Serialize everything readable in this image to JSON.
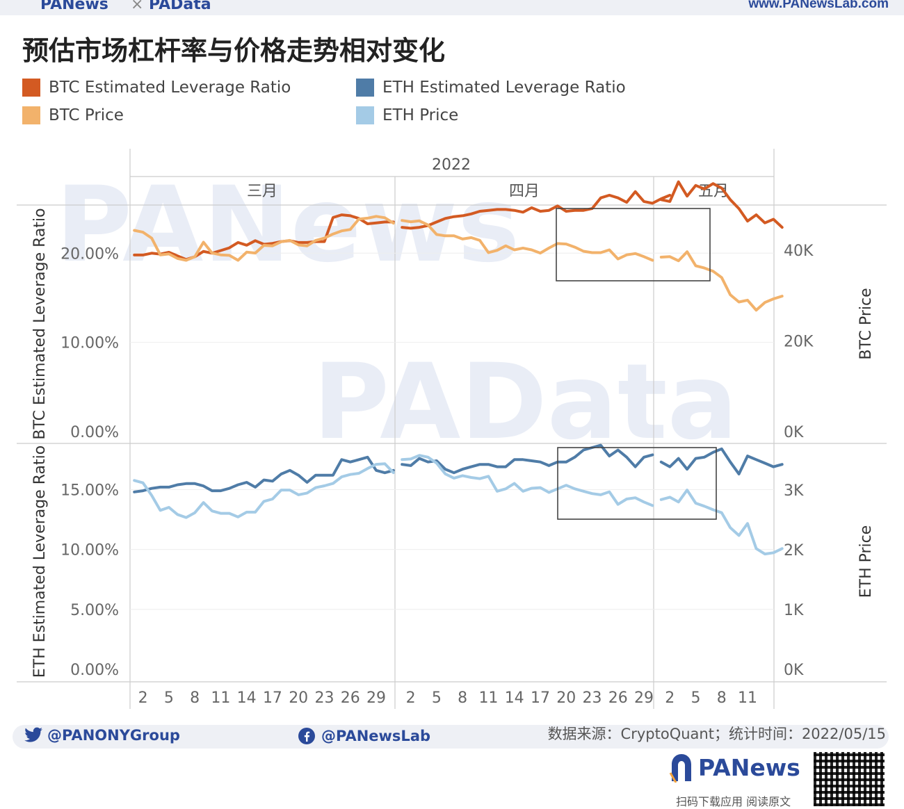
{
  "header": {
    "brand_left": "PANews",
    "brand_sep": "×",
    "brand_right": "PAData",
    "site": "www.PANewsLab.com"
  },
  "title": "预估市场杠杆率与价格走势相对变化",
  "legend": [
    {
      "label": "BTC Estimated Leverage Ratio",
      "color": "#d35a22"
    },
    {
      "label": "ETH Estimated Leverage Ratio",
      "color": "#4f7ca7"
    },
    {
      "label": "BTC Price",
      "color": "#f2b26b"
    },
    {
      "label": "ETH Price",
      "color": "#a4cbe6"
    }
  ],
  "chart_data": {
    "type": "line",
    "year": "2022",
    "months": [
      "三月",
      "四月",
      "五月"
    ],
    "x_tick_labels": [
      "2",
      "5",
      "8",
      "11",
      "14",
      "17",
      "20",
      "23",
      "26",
      "29",
      "2",
      "5",
      "8",
      "11",
      "14",
      "17",
      "20",
      "23",
      "26",
      "29",
      "2",
      "5",
      "8",
      "11"
    ],
    "btc_panel": {
      "ylabel_left": "BTC Estimated Leverage Ratio",
      "ylabel_right": "BTC Price",
      "left_ticks": [
        "0.00%",
        "10.00%",
        "20.00%"
      ],
      "right_ticks": [
        "0K",
        "20K",
        "40K"
      ],
      "ylim_left": [
        0,
        25.4
      ],
      "ylim_right": [
        0,
        50000
      ],
      "series": [
        {
          "name": "BTC Estimated Leverage Ratio",
          "axis": "left",
          "color": "#d35a22",
          "segments": [
            {
              "start_day": 1,
              "values": [
                19.8,
                19.8,
                20.0,
                19.9,
                20.1,
                19.7,
                19.3,
                19.6,
                20.2,
                20.0,
                20.3,
                20.6,
                21.2,
                20.9,
                21.4,
                21.0,
                21.1,
                21.3,
                21.4,
                21.2,
                21.2,
                21.3,
                21.3,
                24.0,
                24.3,
                24.2,
                23.9,
                23.3,
                23.4,
                23.5,
                23.5
              ]
            },
            {
              "start_day": 32,
              "values": [
                22.9,
                22.8,
                22.9,
                23.1,
                23.5,
                23.9,
                24.1,
                24.2,
                24.4,
                24.7,
                24.8,
                24.9,
                24.9,
                24.8,
                24.6,
                25.1,
                24.7,
                24.8,
                25.3,
                24.7,
                24.8,
                24.8,
                25.0,
                26.2,
                26.5,
                26.2,
                25.7,
                26.9,
                25.8,
                25.6,
                26.1,
                26.5
              ]
            },
            {
              "start_day": 62,
              "values": [
                26.0,
                25.8,
                28.0,
                26.4,
                27.6,
                27.2,
                27.8,
                27.3,
                26.0,
                25.0,
                23.6,
                24.3,
                23.4,
                23.8,
                22.9
              ]
            }
          ]
        },
        {
          "name": "BTC Price",
          "axis": "right",
          "color": "#f2b26b",
          "segments": [
            {
              "start_day": 1,
              "values": [
                44400,
                44000,
                42700,
                39000,
                39200,
                38200,
                37800,
                38600,
                41800,
                39400,
                39000,
                38900,
                37800,
                39600,
                39400,
                41100,
                41000,
                41900,
                42200,
                41200,
                41000,
                42200,
                42700,
                43600,
                44300,
                44600,
                46900,
                47100,
                47500,
                47200,
                46000
              ]
            },
            {
              "start_day": 32,
              "values": [
                46600,
                46300,
                46500,
                45600,
                43500,
                43200,
                43200,
                42500,
                42800,
                42200,
                39500,
                40000,
                41000,
                40100,
                40500,
                40100,
                39400,
                40500,
                41500,
                41400,
                40700,
                39800,
                39500,
                39500,
                40100,
                38100,
                39000,
                39300,
                38600,
                37800
              ]
            },
            {
              "start_day": 62,
              "values": [
                38500,
                38600,
                37700,
                39700,
                36600,
                36100,
                35400,
                34000,
                30200,
                28600,
                29000,
                26800,
                28500,
                29300,
                29900
              ]
            }
          ]
        }
      ]
    },
    "eth_panel": {
      "ylabel_left": "ETH Estimated Leverage Ratio",
      "ylabel_right": "ETH Price",
      "left_ticks": [
        "0.00%",
        "5.00%",
        "10.00%",
        "15.00%"
      ],
      "right_ticks": [
        "0K",
        "1K",
        "2K",
        "3K"
      ],
      "ylim_left": [
        0,
        18.85
      ],
      "ylim_right": [
        0,
        3780
      ],
      "series": [
        {
          "name": "ETH Estimated Leverage Ratio",
          "axis": "left",
          "color": "#4f7ca7",
          "segments": [
            {
              "start_day": 1,
              "values": [
                14.8,
                14.9,
                15.1,
                15.2,
                15.2,
                15.4,
                15.5,
                15.5,
                15.3,
                14.9,
                14.9,
                15.1,
                15.4,
                15.6,
                15.2,
                15.8,
                15.7,
                16.3,
                16.6,
                16.2,
                15.6,
                16.2,
                16.2,
                16.2,
                17.5,
                17.3,
                17.5,
                17.7,
                16.6,
                16.4,
                16.6
              ]
            },
            {
              "start_day": 32,
              "values": [
                17.1,
                17.0,
                17.6,
                17.3,
                17.4,
                16.7,
                16.4,
                16.7,
                16.9,
                17.1,
                17.1,
                16.9,
                16.9,
                17.5,
                17.5,
                17.4,
                17.3,
                17.0,
                17.3,
                17.3,
                17.7,
                18.3,
                18.5,
                18.7,
                17.8,
                18.3,
                17.7,
                16.9,
                17.7,
                17.9
              ]
            },
            {
              "start_day": 62,
              "values": [
                17.3,
                16.9,
                17.6,
                16.7,
                17.6,
                17.7,
                18.1,
                18.4,
                17.3,
                16.3,
                17.8,
                17.5,
                17.2,
                16.9,
                17.1
              ]
            }
          ]
        },
        {
          "name": "ETH Price",
          "axis": "right",
          "color": "#a4cbe6",
          "segments": [
            {
              "start_day": 1,
              "values": [
                3160,
                3120,
                2910,
                2660,
                2710,
                2590,
                2540,
                2620,
                2790,
                2650,
                2610,
                2610,
                2550,
                2630,
                2630,
                2810,
                2850,
                3000,
                3000,
                2920,
                2950,
                3040,
                3070,
                3110,
                3220,
                3260,
                3280,
                3360,
                3430,
                3440,
                3290
              ]
            },
            {
              "start_day": 32,
              "values": [
                3510,
                3520,
                3580,
                3550,
                3450,
                3270,
                3200,
                3240,
                3210,
                3190,
                3230,
                2980,
                3020,
                3110,
                2980,
                3030,
                3040,
                2960,
                3020,
                3080,
                3020,
                2980,
                2940,
                2920,
                2970,
                2760,
                2850,
                2870,
                2800,
                2740
              ]
            },
            {
              "start_day": 62,
              "values": [
                2840,
                2880,
                2800,
                3000,
                2780,
                2730,
                2670,
                2620,
                2370,
                2240,
                2440,
                2020,
                1930,
                1950,
                2020
              ]
            }
          ]
        }
      ]
    },
    "annotations": [
      "box around Apr 20 – May 7 in both panels"
    ],
    "source": "数据来源：CryptoQuant；统计时间：2022/05/15"
  },
  "footer": {
    "twitter": "@PANONYGroup",
    "facebook": "@PANewsLab",
    "source": "数据来源：CryptoQuant；统计时间：2022/05/15",
    "logo": "PANews",
    "scan": "扫码下载应用  阅读原文"
  },
  "watermarks": [
    "PANews",
    "PAData"
  ],
  "icons": [
    "twitter-bird-icon",
    "facebook-icon",
    "panews-logo-icon",
    "qr-code"
  ]
}
